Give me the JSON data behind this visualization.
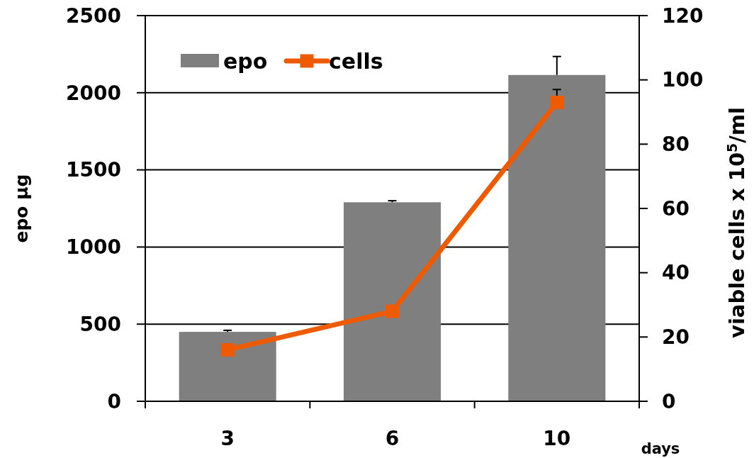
{
  "chart_data": {
    "type": "bar",
    "categories": [
      "3",
      "6",
      "10"
    ],
    "xlabel": "days",
    "ylabel": "epo µg",
    "y2label": "viable cells x 10$^{5}$/ml",
    "ylim": [
      0,
      2500
    ],
    "yticks": [
      0,
      500,
      1000,
      1500,
      2000,
      2500
    ],
    "y2lim": [
      0,
      120
    ],
    "y2ticks": [
      0,
      20,
      40,
      60,
      80,
      100,
      120
    ],
    "grid": "y",
    "legend": "top left",
    "series": [
      {
        "name": "epo",
        "color": "#7f7f7f",
        "values": [
          450,
          1290,
          2115
        ],
        "errors": [
          [
            450,
            460
          ],
          [
            1290,
            1300
          ],
          [
            2115,
            2235
          ]
        ]
      },
      {
        "name": "cells",
        "type": "line",
        "axis": "y2",
        "color": "#ee5a00",
        "values": [
          16,
          28,
          93
        ],
        "errors": [
          null,
          null,
          [
            93,
            97
          ]
        ],
        "marker": "square"
      }
    ]
  }
}
